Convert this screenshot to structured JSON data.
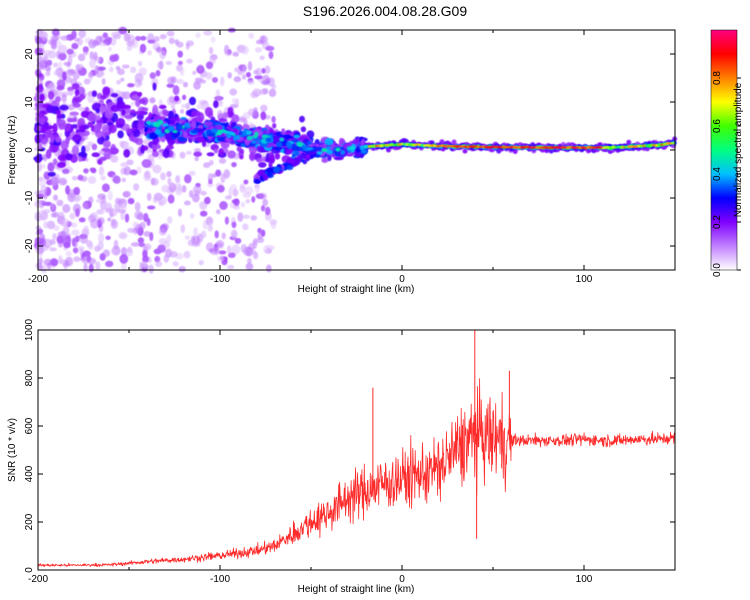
{
  "title": "S196.2026.004.08.28.G09",
  "chart_data": [
    {
      "type": "heatmap",
      "xlabel": "Height of straight line (km)",
      "ylabel": "Frequency (Hz)",
      "xlim": [
        -200,
        150
      ],
      "ylim": [
        -25,
        25
      ],
      "xticks": [
        -200,
        -100,
        0,
        100
      ],
      "yticks": [
        -20,
        -10,
        0,
        10,
        20
      ],
      "xtick_labels": [
        "-200",
        "-100",
        "0",
        "100"
      ],
      "ytick_labels": [
        "-20",
        "-10",
        "0",
        "10",
        "20"
      ],
      "colorbar": {
        "label": "Normalized spectral amplitude",
        "range": [
          0,
          1
        ],
        "ticks": [
          0,
          0.2,
          0.4,
          0.6,
          0.8
        ],
        "tick_labels": [
          "0.0",
          "0.2",
          "0.4",
          "0.6",
          "0.8"
        ],
        "colors": [
          "#ffffff",
          "#c080ff",
          "#8000ff",
          "#0000ff",
          "#00c0ff",
          "#00ff80",
          "#40ff00",
          "#ffff00",
          "#ff8000",
          "#ff0000",
          "#ff0080"
        ]
      },
      "ridge": {
        "x": [
          -140,
          -120,
          -100,
          -80,
          -60,
          -40,
          -30,
          -20,
          0,
          20,
          50,
          80,
          100,
          120,
          140,
          150
        ],
        "freq": [
          5,
          4.5,
          3.5,
          2.5,
          1.5,
          0,
          0,
          0.7,
          1.2,
          0.8,
          0.6,
          0.5,
          0.5,
          0.6,
          1.0,
          1.5
        ]
      }
    },
    {
      "type": "line",
      "xlabel": "Height of straight line (km)",
      "ylabel": "SNR (10 * v/v)",
      "xlim": [
        -200,
        150
      ],
      "ylim": [
        0,
        1000
      ],
      "xticks": [
        -200,
        -100,
        0,
        100
      ],
      "yticks": [
        0,
        200,
        400,
        600,
        800,
        1000
      ],
      "xtick_labels": [
        "-200",
        "-100",
        "0",
        "100"
      ],
      "ytick_labels": [
        "0",
        "200",
        "400",
        "600",
        "800",
        "1000"
      ],
      "color": "#ff2a2a",
      "series": [
        {
          "name": "SNR",
          "x": [
            -200,
            -180,
            -160,
            -140,
            -120,
            -100,
            -90,
            -80,
            -70,
            -60,
            -50,
            -40,
            -30,
            -20,
            -10,
            0,
            10,
            20,
            30,
            40,
            50,
            60,
            70,
            80,
            90,
            100,
            110,
            120,
            130,
            140,
            150
          ],
          "values": [
            20,
            20,
            22,
            35,
            45,
            60,
            70,
            80,
            100,
            150,
            200,
            240,
            300,
            330,
            360,
            380,
            400,
            420,
            500,
            560,
            550,
            540,
            540,
            540,
            540,
            545,
            540,
            540,
            545,
            545,
            550
          ],
          "spikes": [
            {
              "x": -16,
              "y": 760
            },
            {
              "x": 40,
              "y": 1000
            },
            {
              "x": 41,
              "y": 130
            },
            {
              "x": 59,
              "y": 830
            }
          ]
        }
      ]
    }
  ]
}
